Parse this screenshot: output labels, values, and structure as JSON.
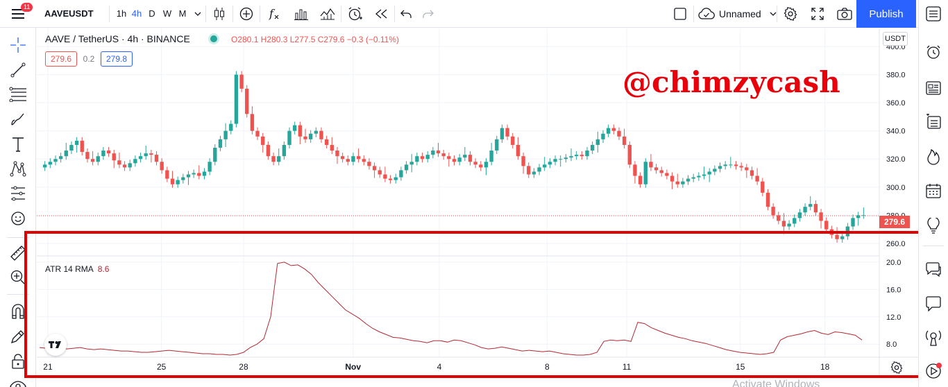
{
  "topbar": {
    "badge_count": "11",
    "symbol": "AAVEUSDT",
    "timeframes": [
      "1h",
      "4h",
      "D",
      "W",
      "M"
    ],
    "active_timeframe": "4h",
    "layout_name": "Unnamed",
    "publish_label": "Publish"
  },
  "legend": {
    "title": "AAVE / TetherUS · 4h · BINANCE",
    "ohlc": "O280.1 H280.3 L277.5 C279.6 −0.3 (−0.11%)",
    "bid": "279.6",
    "spread": "0.2",
    "ask": "279.8",
    "currency": "USDT",
    "last_price": "279.6"
  },
  "indicator": {
    "name": "ATR 14 RMA",
    "value": "8.6"
  },
  "watermark": "@chimzycash",
  "os_notice": "Activate Windows",
  "chart_data": [
    {
      "type": "candlestick",
      "title": "AAVE / TetherUS · 4h · BINANCE",
      "xlabel": "",
      "ylabel": "",
      "x_tick_labels": [
        "21",
        "25",
        "28",
        "Nov",
        "4",
        "8",
        "11",
        "15",
        "18"
      ],
      "y_tick_labels": [
        "260.0",
        "280.0",
        "300.0",
        "320.0",
        "340.0",
        "360.0",
        "380.0",
        "400.0"
      ],
      "ylim": [
        255,
        402
      ],
      "last_price": 279.6,
      "close_series": [
        314,
        316,
        318,
        320,
        322,
        326,
        330,
        333,
        325,
        320,
        318,
        322,
        326,
        324,
        319,
        316,
        314,
        317,
        320,
        322,
        324,
        323,
        318,
        312,
        306,
        302,
        305,
        307,
        309,
        310,
        308,
        311,
        318,
        328,
        334,
        340,
        345,
        380,
        370,
        352,
        340,
        336,
        330,
        322,
        318,
        322,
        330,
        340,
        344,
        336,
        334,
        338,
        340,
        334,
        330,
        326,
        322,
        320,
        318,
        322,
        320,
        318,
        315,
        312,
        309,
        306,
        305,
        307,
        312,
        316,
        318,
        322,
        320,
        323,
        326,
        324,
        322,
        320,
        318,
        321,
        323,
        318,
        316,
        314,
        318,
        326,
        334,
        342,
        336,
        330,
        322,
        315,
        309,
        311,
        314,
        316,
        318,
        320,
        320,
        321,
        322,
        323,
        322,
        326,
        330,
        334,
        338,
        342,
        340,
        336,
        330,
        316,
        308,
        302,
        318,
        314,
        312,
        310,
        308,
        304,
        302,
        304,
        306,
        307,
        308,
        309,
        311,
        313,
        315,
        316,
        316,
        315,
        314,
        312,
        308,
        304,
        296,
        286,
        280,
        276,
        272,
        274,
        278,
        282,
        286,
        288,
        282,
        276,
        270,
        266,
        263,
        265,
        272,
        278,
        280,
        280
      ],
      "atr_ylim": [
        6.5,
        20.5
      ],
      "atr_y_tick_labels": [
        "8.0",
        "12.0",
        "16.0",
        "20.0"
      ],
      "atr_series": [
        7.5,
        7.4,
        7.3,
        7.4,
        7.3,
        7.4,
        7.5,
        7.3,
        7.2,
        7.3,
        7.2,
        7.1,
        7.0,
        7.0,
        6.9,
        6.8,
        6.8,
        6.9,
        7.0,
        7.1,
        7.0,
        6.9,
        6.8,
        6.7,
        6.6,
        6.6,
        6.5,
        6.5,
        6.4,
        6.5,
        6.8,
        7.5,
        8.0,
        8.8,
        12.0,
        19.8,
        20.0,
        19.5,
        19.6,
        19.0,
        18.2,
        17.0,
        16.0,
        15.0,
        14.0,
        13.0,
        12.4,
        11.8,
        11.0,
        10.3,
        9.8,
        9.4,
        9.0,
        8.9,
        8.7,
        8.5,
        8.4,
        8.2,
        8.5,
        8.5,
        8.3,
        8.6,
        8.5,
        8.2,
        7.9,
        7.5,
        7.3,
        7.4,
        7.6,
        7.4,
        7.2,
        7.0,
        7.1,
        7.0,
        6.9,
        7.0,
        6.8,
        6.6,
        6.5,
        6.4,
        6.4,
        6.5,
        6.8,
        8.4,
        8.6,
        8.5,
        8.6,
        8.4,
        11.2,
        11.0,
        10.4,
        10.0,
        9.6,
        9.3,
        9.0,
        8.8,
        8.5,
        8.3,
        8.1,
        7.8,
        7.5,
        7.2,
        7.0,
        6.8,
        6.7,
        6.6,
        6.5,
        6.6,
        6.8,
        8.6,
        9.1,
        9.3,
        9.5,
        9.8,
        10.0,
        9.6,
        9.4,
        9.8,
        9.7,
        9.5,
        9.3,
        8.6
      ]
    }
  ]
}
